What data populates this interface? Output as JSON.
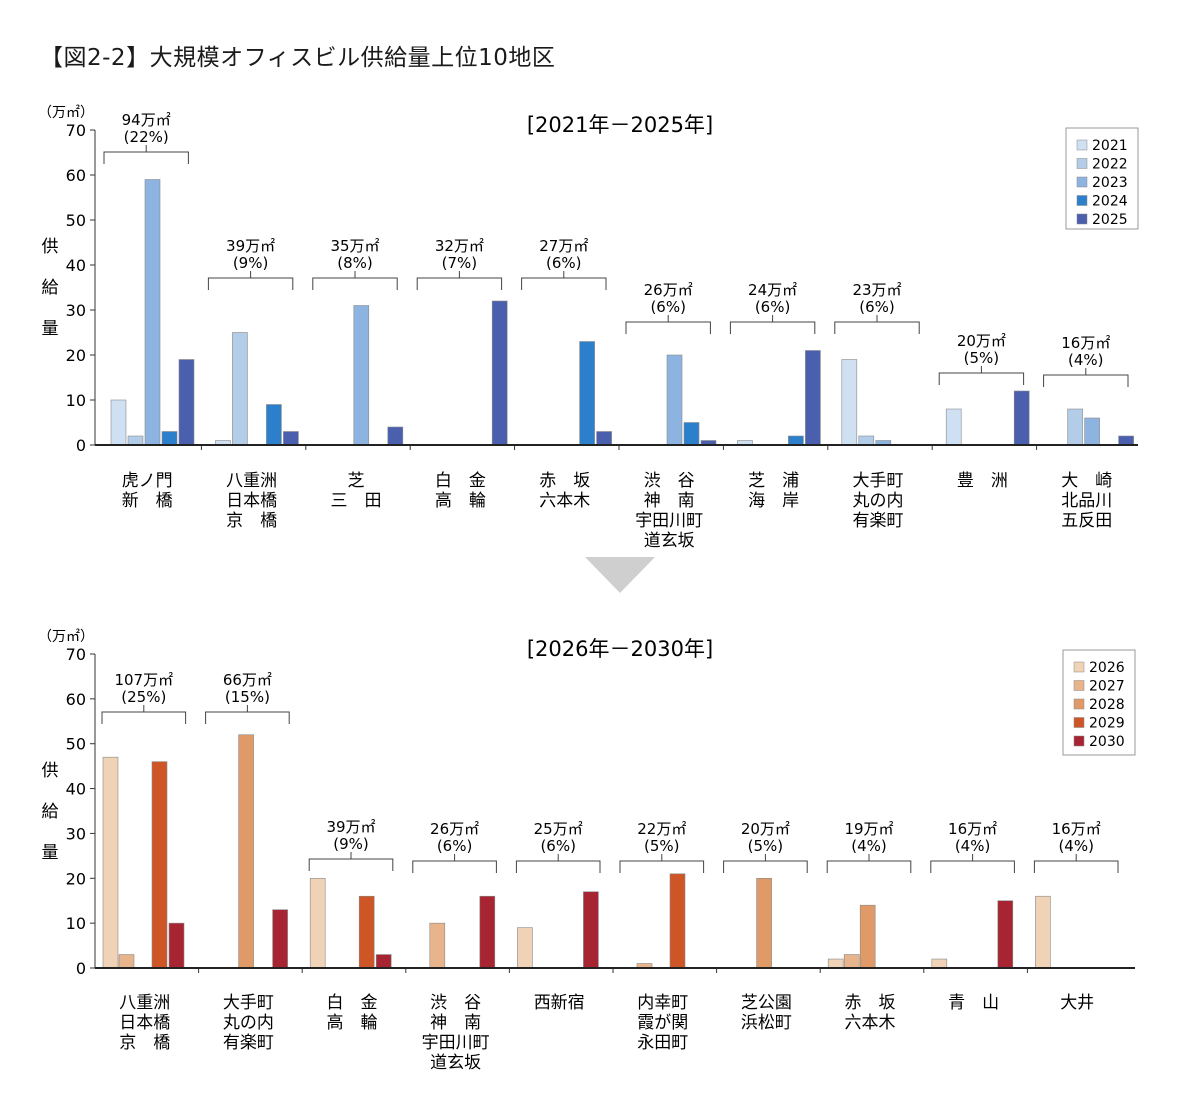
{
  "page": {
    "title": "【図2-2】大規模オフィスビル供給量上位10地区"
  },
  "chart_data": [
    {
      "type": "bar",
      "title": "[2021年－2025年]",
      "unit_label": "（万㎡）",
      "ylabel": "供給量",
      "ylim": [
        0,
        70
      ],
      "yticks": [
        0,
        10,
        20,
        30,
        40,
        50,
        60,
        70
      ],
      "legend_position": "top-right",
      "series": [
        {
          "name": "2021",
          "color": "#cfe0f2"
        },
        {
          "name": "2022",
          "color": "#b3cde9"
        },
        {
          "name": "2023",
          "color": "#8db3e0"
        },
        {
          "name": "2024",
          "color": "#2b7fcb"
        },
        {
          "name": "2025",
          "color": "#4a5fae"
        }
      ],
      "districts": [
        {
          "label": [
            "虎ノ門",
            "新　橋"
          ],
          "total": "94万㎡",
          "share": "(22%)",
          "values": [
            10,
            2,
            59,
            3,
            19
          ]
        },
        {
          "label": [
            "八重洲",
            "日本橋",
            "京　橋"
          ],
          "total": "39万㎡",
          "share": "(9%)",
          "values": [
            1,
            25,
            0,
            9,
            3
          ]
        },
        {
          "label": [
            "芝",
            "三　田"
          ],
          "total": "35万㎡",
          "share": "(8%)",
          "values": [
            0,
            0,
            31,
            0,
            4
          ]
        },
        {
          "label": [
            "白　金",
            "高　輪"
          ],
          "total": "32万㎡",
          "share": "(7%)",
          "values": [
            0,
            0,
            0,
            0,
            32
          ]
        },
        {
          "label": [
            "赤　坂",
            "六本木"
          ],
          "total": "27万㎡",
          "share": "(6%)",
          "values": [
            0,
            0,
            0,
            23,
            3
          ]
        },
        {
          "label": [
            "渋　谷",
            "神　南",
            "宇田川町",
            "道玄坂"
          ],
          "total": "26万㎡",
          "share": "(6%)",
          "values": [
            0,
            0,
            20,
            5,
            1
          ]
        },
        {
          "label": [
            "芝　浦",
            "海　岸"
          ],
          "total": "24万㎡",
          "share": "(6%)",
          "values": [
            1,
            0,
            0,
            2,
            21
          ]
        },
        {
          "label": [
            "大手町",
            "丸の内",
            "有楽町"
          ],
          "total": "23万㎡",
          "share": "(6%)",
          "values": [
            19,
            2,
            1,
            0,
            0
          ]
        },
        {
          "label": [
            "豊　洲"
          ],
          "total": "20万㎡",
          "share": "(5%)",
          "values": [
            8,
            0,
            0,
            0,
            12
          ]
        },
        {
          "label": [
            "大　崎",
            "北品川",
            "五反田"
          ],
          "total": "16万㎡",
          "share": "(4%)",
          "values": [
            0,
            8,
            6,
            0,
            2
          ]
        }
      ]
    },
    {
      "type": "bar",
      "title": "[2026年－2030年]",
      "unit_label": "（万㎡）",
      "ylabel": "供給量",
      "ylim": [
        0,
        70
      ],
      "yticks": [
        0,
        10,
        20,
        30,
        40,
        50,
        60,
        70
      ],
      "legend_position": "top-right",
      "series": [
        {
          "name": "2026",
          "color": "#f0d2b6"
        },
        {
          "name": "2027",
          "color": "#e7b48b"
        },
        {
          "name": "2028",
          "color": "#df9a68"
        },
        {
          "name": "2029",
          "color": "#cd5526"
        },
        {
          "name": "2030",
          "color": "#a72532"
        }
      ],
      "districts": [
        {
          "label": [
            "八重洲",
            "日本橋",
            "京　橋"
          ],
          "total": "107万㎡",
          "share": "(25%)",
          "values": [
            47,
            3,
            0,
            46,
            10
          ]
        },
        {
          "label": [
            "大手町",
            "丸の内",
            "有楽町"
          ],
          "total": "66万㎡",
          "share": "(15%)",
          "values": [
            0,
            0,
            52,
            0,
            13
          ]
        },
        {
          "label": [
            "白　金",
            "高　輪"
          ],
          "total": "39万㎡",
          "share": "(9%)",
          "values": [
            20,
            0,
            0,
            16,
            3
          ]
        },
        {
          "label": [
            "渋　谷",
            "神　南",
            "宇田川町",
            "道玄坂"
          ],
          "total": "26万㎡",
          "share": "(6%)",
          "values": [
            0,
            10,
            0,
            0,
            16
          ]
        },
        {
          "label": [
            "西新宿"
          ],
          "total": "25万㎡",
          "share": "(6%)",
          "values": [
            9,
            0,
            0,
            0,
            17
          ]
        },
        {
          "label": [
            "内幸町",
            "霞が関",
            "永田町"
          ],
          "total": "22万㎡",
          "share": "(5%)",
          "values": [
            0,
            1,
            0,
            21,
            0
          ]
        },
        {
          "label": [
            "芝公園",
            "浜松町"
          ],
          "total": "20万㎡",
          "share": "(5%)",
          "values": [
            0,
            0,
            20,
            0,
            0
          ]
        },
        {
          "label": [
            "赤　坂",
            "六本木"
          ],
          "total": "19万㎡",
          "share": "(4%)",
          "values": [
            2,
            3,
            14,
            0,
            0
          ]
        },
        {
          "label": [
            "青　山"
          ],
          "total": "16万㎡",
          "share": "(4%)",
          "values": [
            2,
            0,
            0,
            0,
            15
          ]
        },
        {
          "label": [
            "大井"
          ],
          "total": "16万㎡",
          "share": "(4%)",
          "values": [
            16,
            0,
            0,
            0,
            0
          ]
        }
      ]
    }
  ]
}
